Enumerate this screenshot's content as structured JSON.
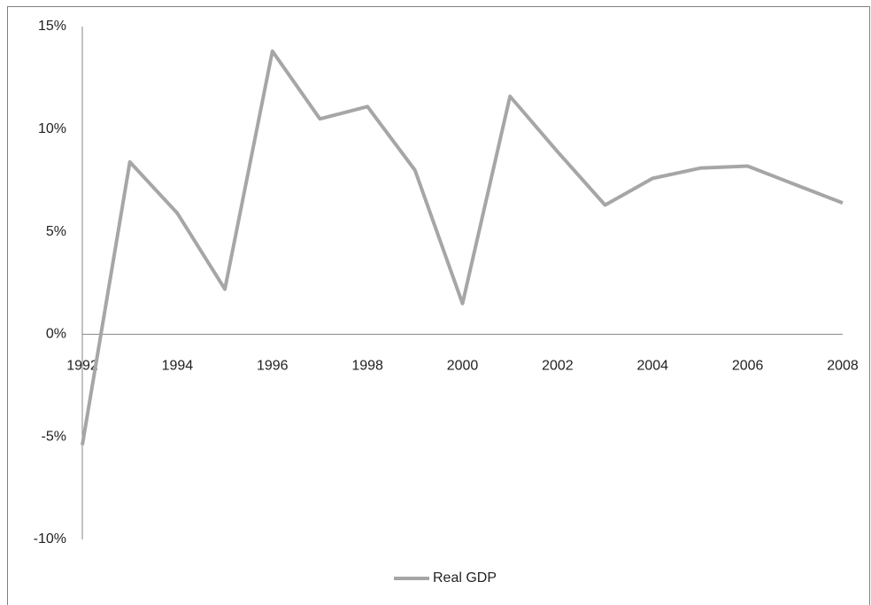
{
  "chart_data": {
    "type": "line",
    "x": [
      1992,
      1993,
      1994,
      1995,
      1996,
      1997,
      1998,
      1999,
      2000,
      2001,
      2002,
      2003,
      2004,
      2005,
      2006,
      2007,
      2008
    ],
    "series": [
      {
        "name": "Real GDP",
        "color": "#a6a6a6",
        "values": [
          -5.4,
          8.4,
          5.9,
          2.2,
          13.8,
          10.5,
          11.1,
          8.0,
          1.5,
          11.6,
          8.9,
          6.3,
          7.6,
          8.1,
          8.2,
          7.3,
          6.4
        ]
      }
    ],
    "xlim": [
      1992,
      2008
    ],
    "xticks": [
      1992,
      1994,
      1996,
      1998,
      2000,
      2002,
      2004,
      2006,
      2008
    ],
    "ylim": [
      -10,
      15
    ],
    "yticks": [
      {
        "value": -10,
        "label": "-10%"
      },
      {
        "value": -5,
        "label": "-5%"
      },
      {
        "value": 0,
        "label": "0%"
      },
      {
        "value": 5,
        "label": "5%"
      },
      {
        "value": 10,
        "label": "10%"
      },
      {
        "value": 15,
        "label": "15%"
      }
    ],
    "grid": false,
    "legend": "bottom"
  }
}
